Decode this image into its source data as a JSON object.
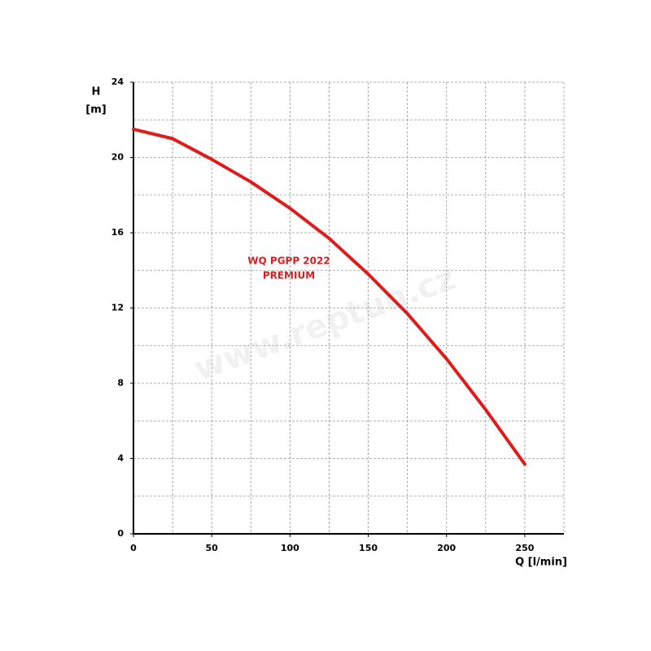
{
  "chart_data": {
    "type": "line",
    "y_label_top": "H",
    "y_label": "[m]",
    "x_label": "Q [l/min]",
    "annotation": [
      "WQ PGPP 2022",
      "PREMIUM"
    ],
    "watermark": "www.reptun.cz",
    "x": [
      0,
      25,
      50,
      75,
      100,
      125,
      150,
      175,
      200,
      225,
      250
    ],
    "series": [
      {
        "color": "#e01b1b",
        "values": [
          21.5,
          21.0,
          19.9,
          18.7,
          17.3,
          15.7,
          13.8,
          11.7,
          9.3,
          6.6,
          3.7
        ]
      }
    ],
    "xlim": [
      0,
      275
    ],
    "ylim": [
      0,
      24
    ],
    "xticks": [
      0,
      50,
      100,
      150,
      200,
      250
    ],
    "yticks": [
      0,
      4,
      8,
      12,
      16,
      20,
      24
    ],
    "xgrid": [
      25,
      50,
      75,
      100,
      125,
      150,
      175,
      200,
      225,
      250,
      275
    ],
    "ygrid": [
      2,
      4,
      6,
      8,
      10,
      12,
      14,
      16,
      18,
      20,
      22,
      24
    ],
    "grid": true
  }
}
